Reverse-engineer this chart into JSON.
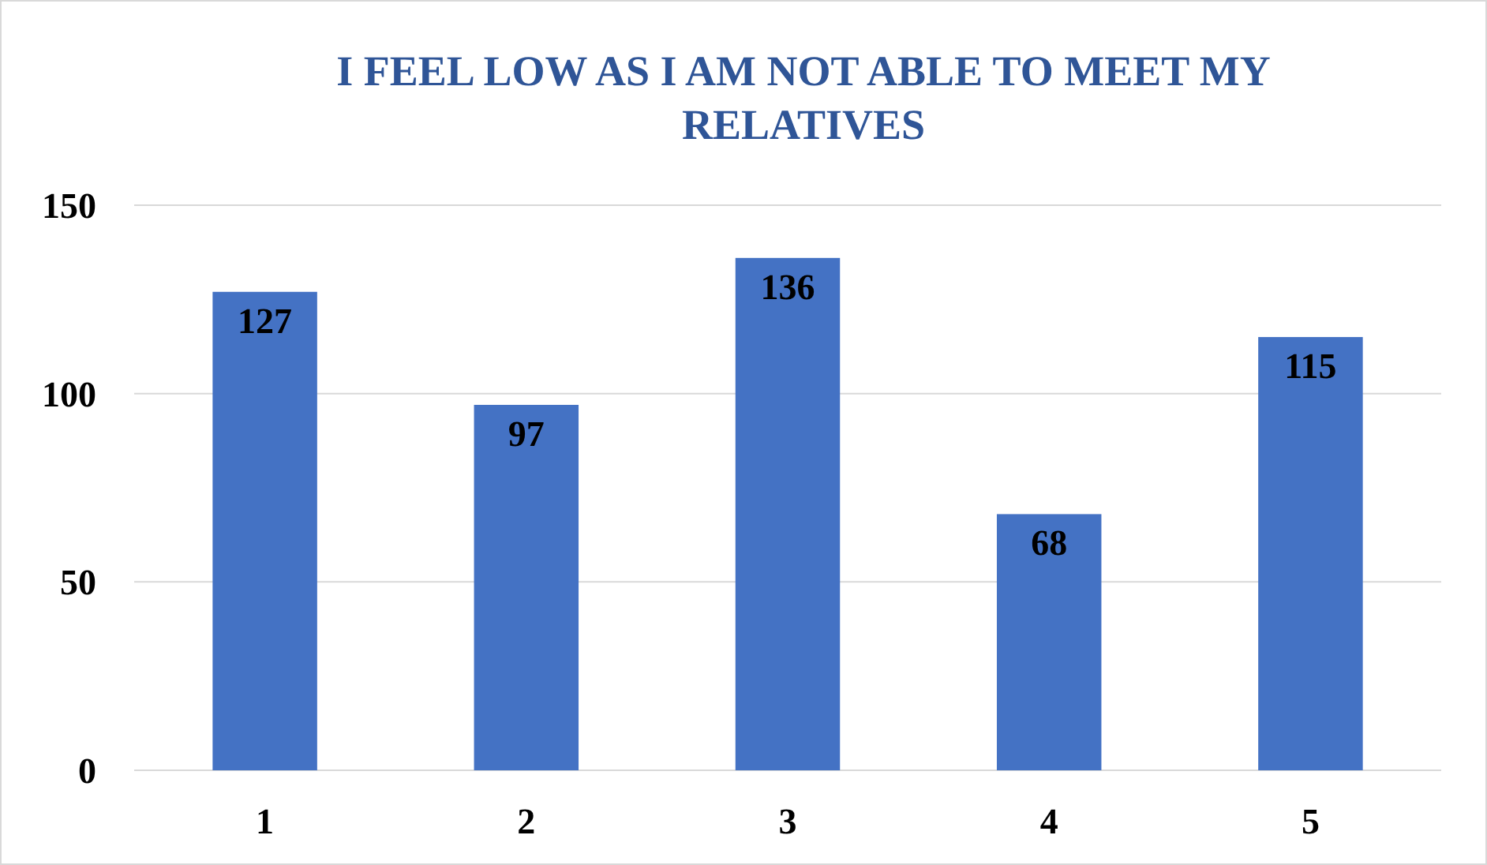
{
  "chart_data": {
    "type": "bar",
    "title": "I FEEL LOW AS I AM NOT ABLE TO MEET MY RELATIVES",
    "categories": [
      "1",
      "2",
      "3",
      "4",
      "5"
    ],
    "values": [
      127,
      97,
      136,
      68,
      115
    ],
    "color": "#4472c4",
    "ylim": [
      0,
      150
    ],
    "yticks": [
      0,
      50,
      100,
      150
    ],
    "grid": "y",
    "data_labels": true
  }
}
